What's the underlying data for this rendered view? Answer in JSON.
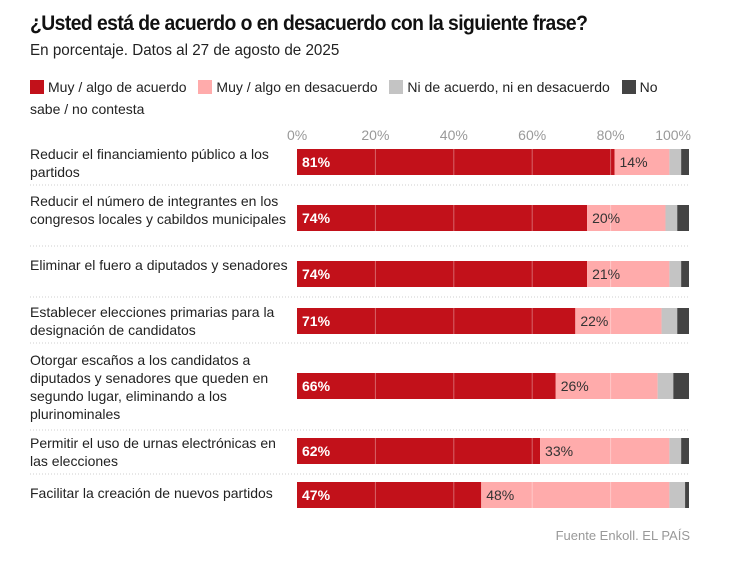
{
  "title": "¿Usted está de acuerdo o en desacuerdo con la siguiente frase?",
  "subtitle": "En porcentaje. Datos al 27 de agosto de 2025",
  "legend": [
    {
      "label": "Muy / algo de acuerdo",
      "color": "#c2111a"
    },
    {
      "label": "Muy / algo en desacuerdo",
      "color": "#ffabab"
    },
    {
      "label": "Ni de acuerdo, ni en desacuerdo",
      "color": "#c4c4c4"
    },
    {
      "label": "No sabe / no contesta",
      "color": "#444444"
    }
  ],
  "footer": "Fuente Enkoll. EL PAÍS",
  "chart_data": {
    "type": "bar",
    "orientation": "horizontal",
    "stacked": true,
    "title": "¿Usted está de acuerdo o en desacuerdo con la siguiente frase?",
    "subtitle": "En porcentaje. Datos al 27 de agosto de 2025",
    "xlabel": "",
    "ylabel": "",
    "xlim": [
      0,
      100
    ],
    "x_ticks": [
      "0%",
      "20%",
      "40%",
      "60%",
      "80%",
      "100%"
    ],
    "x_tick_values": [
      0,
      20,
      40,
      60,
      80,
      100
    ],
    "grid": true,
    "legend_position": "top",
    "categories": [
      "Reducir el financiamiento público a los partidos",
      "Reducir el número de integrantes en los congresos locales y cabildos municipales",
      "Eliminar el fuero a diputados y senadores",
      "Establecer elecciones primarias para la designación de candidatos",
      "Otorgar escaños a los candidatos a diputados y senadores que queden en segundo lugar, eliminando a los plurinominales",
      "Permitir el uso de urnas electrónicas en las elecciones",
      "Facilitar la creación de nuevos partidos"
    ],
    "series": [
      {
        "name": "Muy / algo de acuerdo",
        "color": "#c2111a",
        "values": [
          81,
          74,
          74,
          71,
          66,
          62,
          47
        ],
        "labels": [
          "81%",
          "74%",
          "74%",
          "71%",
          "66%",
          "62%",
          "47%"
        ]
      },
      {
        "name": "Muy / algo en desacuerdo",
        "color": "#ffabab",
        "values": [
          14,
          20,
          21,
          22,
          26,
          33,
          48
        ],
        "labels": [
          "14%",
          "20%",
          "21%",
          "22%",
          "26%",
          "33%",
          "48%"
        ]
      },
      {
        "name": "Ni de acuerdo, ni en desacuerdo",
        "color": "#c4c4c4",
        "values": [
          3,
          3,
          3,
          4,
          4,
          3,
          4
        ]
      },
      {
        "name": "No sabe / no contesta",
        "color": "#444444",
        "values": [
          2,
          3,
          2,
          3,
          4,
          2,
          1
        ]
      }
    ],
    "source": "Fuente Enkoll. EL PAÍS"
  }
}
